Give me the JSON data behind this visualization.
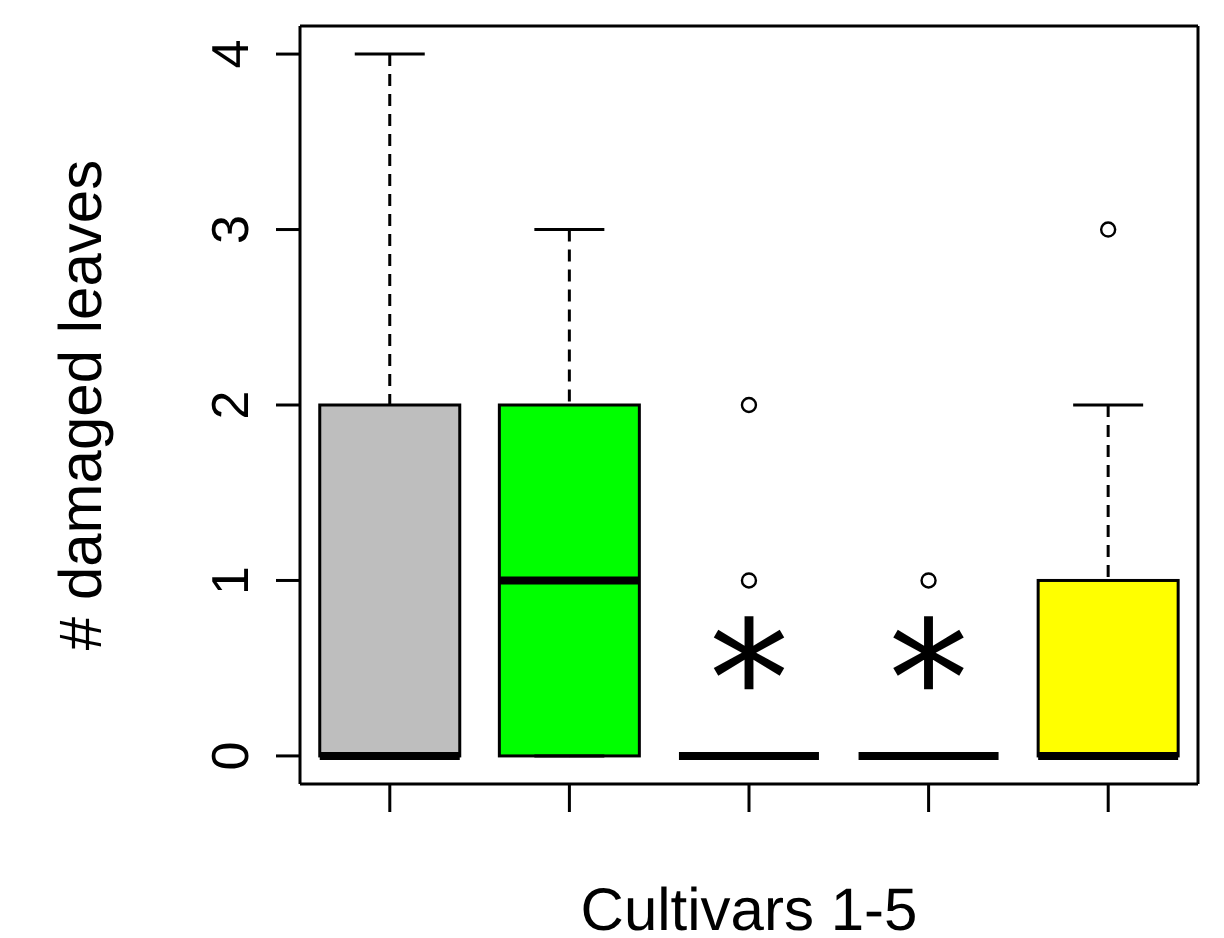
{
  "chart_data": {
    "type": "box",
    "xlabel": "Cultivars 1-5",
    "ylabel": "# damaged leaves",
    "categories": [
      null,
      null,
      null,
      null,
      null
    ],
    "colors": [
      "#bebebe",
      "#00ff00",
      null,
      null,
      "#ffff00"
    ],
    "boxes": [
      {
        "low": 0,
        "q1": 0,
        "median": 0,
        "q3": 2,
        "high": 4
      },
      {
        "low": 0,
        "q1": 0,
        "median": 1,
        "q3": 2,
        "high": 3
      },
      {
        "low": 0,
        "q1": 0,
        "median": 0,
        "q3": 0,
        "high": 0,
        "outliers": [
          1,
          2
        ]
      },
      {
        "low": 0,
        "q1": 0,
        "median": 0,
        "q3": 0,
        "high": 0,
        "outliers": [
          1
        ]
      },
      {
        "low": 0,
        "q1": 0,
        "median": 0,
        "q3": 1,
        "high": 2,
        "outliers": [
          3
        ]
      }
    ],
    "ylim": [
      -0.16,
      4.16
    ],
    "yticks": [
      0,
      1,
      2,
      3,
      4
    ],
    "tick_labels": "y",
    "annotations": [
      "*",
      "*"
    ]
  }
}
